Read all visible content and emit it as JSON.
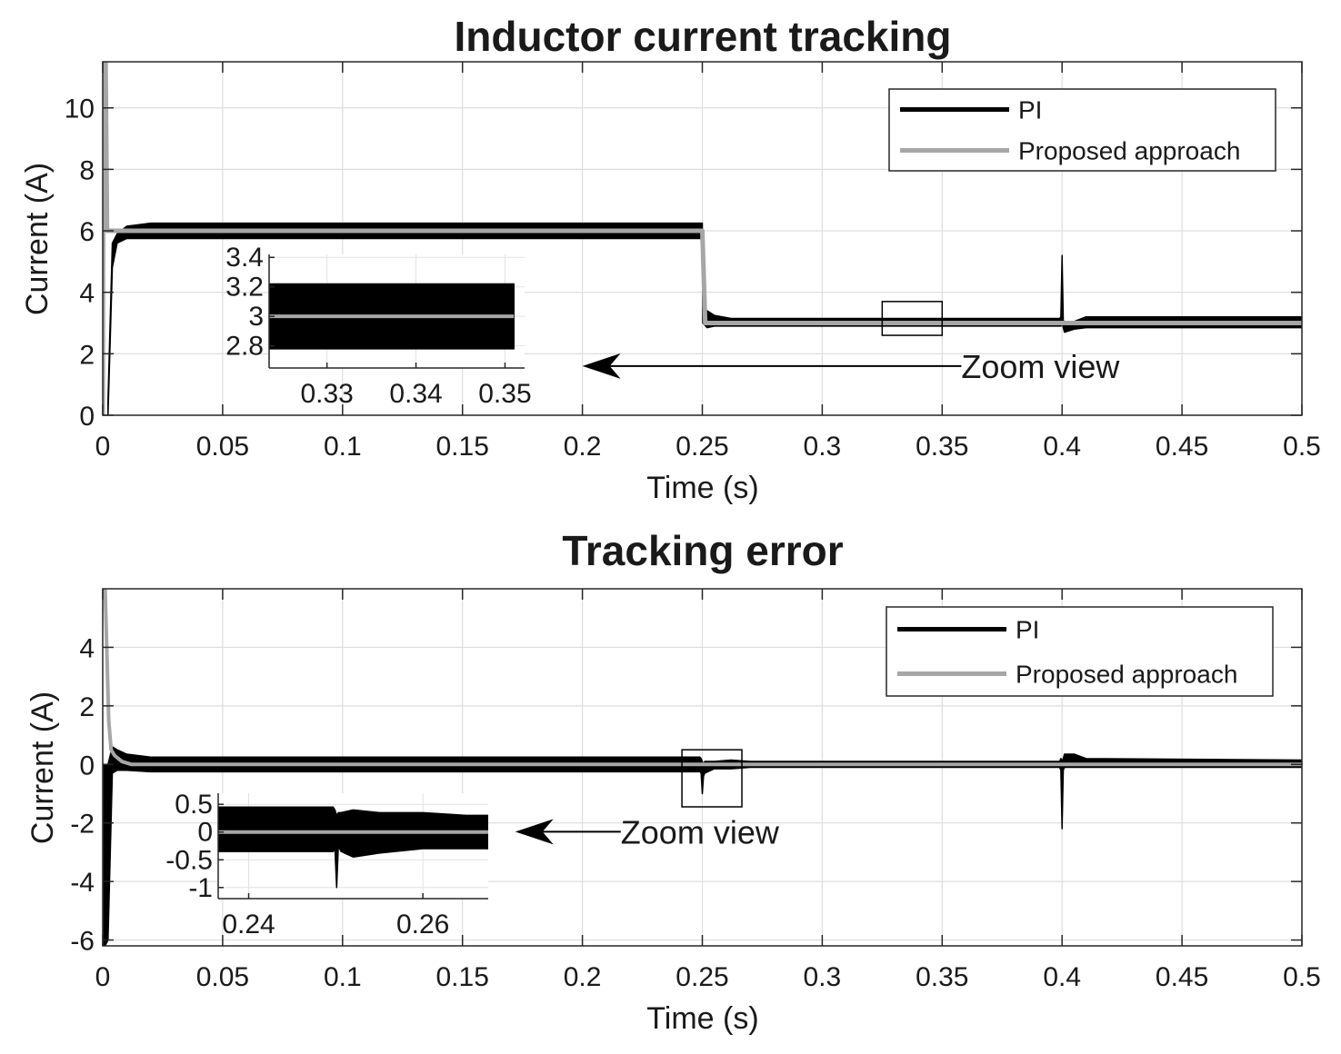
{
  "chart_data": [
    {
      "type": "line",
      "title": "Inductor current tracking",
      "xlabel": "Time (s)",
      "ylabel": "Current (A)",
      "xlim": [
        0,
        0.5
      ],
      "ylim": [
        0,
        11.5
      ],
      "xticks": [
        0,
        0.05,
        0.1,
        0.15,
        0.2,
        0.25,
        0.3,
        0.35,
        0.4,
        0.45,
        0.5
      ],
      "xtick_labels": [
        "0",
        "0.05",
        "0.1",
        "0.15",
        "0.2",
        "0.25",
        "0.3",
        "0.35",
        "0.4",
        "0.45",
        "0.5"
      ],
      "yticks": [
        0,
        2,
        4,
        6,
        8,
        10
      ],
      "ytick_labels": [
        "0",
        "2",
        "4",
        "6",
        "8",
        "10"
      ],
      "grid": true,
      "legend_position": "top-right",
      "series": [
        {
          "name": "PI",
          "color": "#000000",
          "band": {
            "x": [
              0.0022,
              0.004,
              0.006,
              0.01,
              0.02,
              0.25,
              0.2502,
              0.252,
              0.255,
              0.262,
              0.27,
              0.399,
              0.3995,
              0.4,
              0.4005,
              0.401,
              0.405,
              0.41,
              0.5
            ],
            "upper": [
              0.5,
              5.6,
              5.9,
              6.15,
              6.25,
              6.25,
              3.4,
              3.4,
              3.25,
              3.15,
              3.15,
              3.15,
              3.2,
              5.2,
              3.1,
              2.95,
              3.05,
              3.2,
              3.2
            ],
            "lower": [
              0.0,
              4.8,
              5.6,
              5.75,
              5.75,
              5.75,
              3.0,
              2.85,
              2.9,
              2.9,
              2.9,
              2.9,
              2.9,
              3.0,
              2.85,
              2.7,
              2.8,
              2.85,
              2.85
            ]
          }
        },
        {
          "name": "Proposed approach",
          "color": "#a6a6a6",
          "x": [
            0,
            0.0003,
            0.0012,
            0.0018,
            0.25,
            0.2512,
            0.5
          ],
          "y": [
            0,
            11.5,
            11.5,
            6.0,
            6.0,
            3.0,
            3.0
          ]
        }
      ],
      "annotations": [
        {
          "text": "Zoom view",
          "x": 0.358,
          "y": 1.6,
          "arrow_to": [
            0.2,
            1.6
          ]
        }
      ],
      "zoom_box": {
        "x": [
          0.325,
          0.35
        ],
        "y": [
          2.6,
          3.7
        ]
      },
      "inset": {
        "xlim": [
          0.3235,
          0.3522
        ],
        "ylim": [
          2.65,
          3.42
        ],
        "xticks": [
          0.33,
          0.34,
          0.35
        ],
        "xtick_labels": [
          "0.33",
          "0.34",
          "0.35"
        ],
        "yticks": [
          2.8,
          3,
          3.2,
          3.4
        ],
        "ytick_labels": [
          "2.8",
          "3",
          "3.2",
          "3.4"
        ],
        "series": [
          {
            "name": "PI",
            "color": "#000000",
            "band": {
              "x": [
                0.3235,
                0.351
              ],
              "upper": [
                3.22,
                3.22
              ],
              "lower": [
                2.78,
                2.78
              ]
            }
          },
          {
            "name": "Proposed approach",
            "color": "#a6a6a6",
            "x": [
              0.3235,
              0.351
            ],
            "y": [
              3.0,
              3.0
            ]
          }
        ]
      }
    },
    {
      "type": "line",
      "title": "Tracking error",
      "xlabel": "Time (s)",
      "ylabel": "Current (A)",
      "xlim": [
        0,
        0.5
      ],
      "ylim": [
        -6.2,
        6.0
      ],
      "xticks": [
        0,
        0.05,
        0.1,
        0.15,
        0.2,
        0.25,
        0.3,
        0.35,
        0.4,
        0.45,
        0.5
      ],
      "xtick_labels": [
        "0",
        "0.05",
        "0.1",
        "0.15",
        "0.2",
        "0.25",
        "0.3",
        "0.35",
        "0.4",
        "0.45",
        "0.5"
      ],
      "yticks": [
        -6,
        -4,
        -2,
        0,
        2,
        4
      ],
      "ytick_labels": [
        "-6",
        "-4",
        "-2",
        "0",
        "2",
        "4"
      ],
      "grid": true,
      "legend_position": "top-right",
      "series": [
        {
          "name": "PI",
          "color": "#000000",
          "band": {
            "x": [
              0.0005,
              0.001,
              0.0022,
              0.004,
              0.006,
              0.01,
              0.02,
              0.249,
              0.2495,
              0.25,
              0.2505,
              0.251,
              0.255,
              0.262,
              0.27,
              0.3,
              0.399,
              0.3995,
              0.4,
              0.4005,
              0.401,
              0.405,
              0.41,
              0.5
            ],
            "upper": [
              0.0,
              0.0,
              0.0,
              0.6,
              0.5,
              0.35,
              0.25,
              0.25,
              0.2,
              0.1,
              0.0,
              0.1,
              0.1,
              0.15,
              0.1,
              0.1,
              0.1,
              0.2,
              0.1,
              0.2,
              0.35,
              0.35,
              0.2,
              0.15
            ],
            "lower": [
              -6.2,
              -6.2,
              -6.0,
              -0.3,
              -0.2,
              -0.2,
              -0.25,
              -0.25,
              -0.3,
              -1.0,
              -0.4,
              -0.3,
              -0.15,
              -0.15,
              -0.1,
              -0.1,
              -0.1,
              -0.2,
              -2.2,
              -0.2,
              -0.1,
              -0.1,
              -0.1,
              -0.1
            ]
          }
        },
        {
          "name": "Proposed approach",
          "color": "#a6a6a6",
          "x": [
            0,
            0.0005,
            0.001,
            0.0025,
            0.0035,
            0.005,
            0.008,
            0.012,
            0.5
          ],
          "y": [
            6.0,
            6.0,
            6.0,
            1.5,
            0.5,
            0.3,
            0.1,
            0.0,
            0.0
          ]
        }
      ],
      "annotations": [
        {
          "text": "Zoom view",
          "x": 0.216,
          "y": -2.3,
          "arrow_to": [
            0.172,
            -2.3
          ]
        }
      ],
      "zoom_box": {
        "x": [
          0.2415,
          0.2665
        ],
        "y": [
          -1.45,
          0.5
        ]
      },
      "inset": {
        "xlim": [
          0.2365,
          0.2675
        ],
        "ylim": [
          -1.2,
          0.7
        ],
        "xticks": [
          0.24,
          0.26
        ],
        "xtick_labels": [
          "0.24",
          "0.26"
        ],
        "yticks": [
          -1,
          -0.5,
          0,
          0.5
        ],
        "ytick_labels": [
          "-1",
          "-0.5",
          "0",
          "0.5"
        ],
        "series": [
          {
            "name": "PI",
            "color": "#000000",
            "band": {
              "x": [
                0.2365,
                0.2497,
                0.2499,
                0.2501,
                0.2503,
                0.2506,
                0.252,
                0.255,
                0.26,
                0.265,
                0.2675
              ],
              "upper": [
                0.45,
                0.45,
                0.4,
                0.3,
                0.35,
                0.35,
                0.4,
                0.35,
                0.35,
                0.3,
                0.3
              ],
              "lower": [
                -0.35,
                -0.35,
                -0.3,
                -1.0,
                -0.25,
                -0.35,
                -0.45,
                -0.38,
                -0.3,
                -0.3,
                -0.3
              ]
            }
          },
          {
            "name": "Proposed approach",
            "color": "#a6a6a6",
            "x": [
              0.2365,
              0.2675
            ],
            "y": [
              0.0,
              0.0
            ]
          }
        ]
      }
    }
  ]
}
